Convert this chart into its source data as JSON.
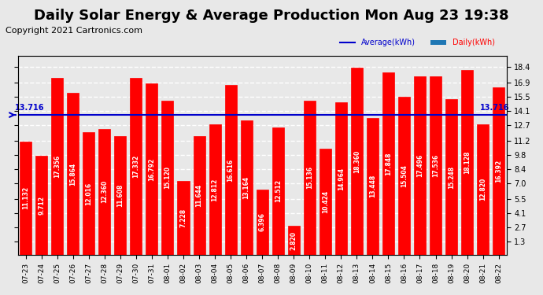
{
  "title": "Daily Solar Energy & Average Production Mon Aug 23 19:38",
  "copyright": "Copyright 2021 Cartronics.com",
  "legend_average": "Average(kWh)",
  "legend_daily": "Daily(kWh)",
  "average_value": 13.716,
  "average_label": "13.716",
  "categories": [
    "07-23",
    "07-24",
    "07-25",
    "07-26",
    "07-27",
    "07-28",
    "07-29",
    "07-30",
    "07-31",
    "08-01",
    "08-02",
    "08-03",
    "08-04",
    "08-05",
    "08-06",
    "08-07",
    "08-08",
    "08-09",
    "08-10",
    "08-11",
    "08-12",
    "08-13",
    "08-14",
    "08-15",
    "08-16",
    "08-17",
    "08-18",
    "08-19",
    "08-20",
    "08-21",
    "08-22"
  ],
  "values": [
    11.132,
    9.712,
    17.356,
    15.864,
    12.016,
    12.36,
    11.608,
    17.332,
    16.792,
    15.12,
    7.228,
    11.644,
    12.812,
    16.616,
    13.164,
    6.396,
    12.512,
    2.82,
    15.136,
    10.424,
    14.964,
    18.36,
    13.448,
    17.848,
    15.504,
    17.496,
    17.536,
    15.248,
    18.128,
    12.82,
    16.392
  ],
  "bar_color": "#ff0000",
  "bar_edgecolor": "#ff0000",
  "average_line_color": "#0000cc",
  "average_label_color": "#0000cc",
  "title_color": "#000000",
  "title_fontsize": 13,
  "copyright_color": "#000000",
  "copyright_fontsize": 8,
  "yticks": [
    1.3,
    2.7,
    4.1,
    5.5,
    7.0,
    8.4,
    9.8,
    11.2,
    12.7,
    14.1,
    15.5,
    16.9,
    18.4
  ],
  "ylim": [
    0,
    19.5
  ],
  "background_color": "#e8e8e8",
  "grid_color": "#ffffff",
  "ylabel_right_color": "#000000"
}
